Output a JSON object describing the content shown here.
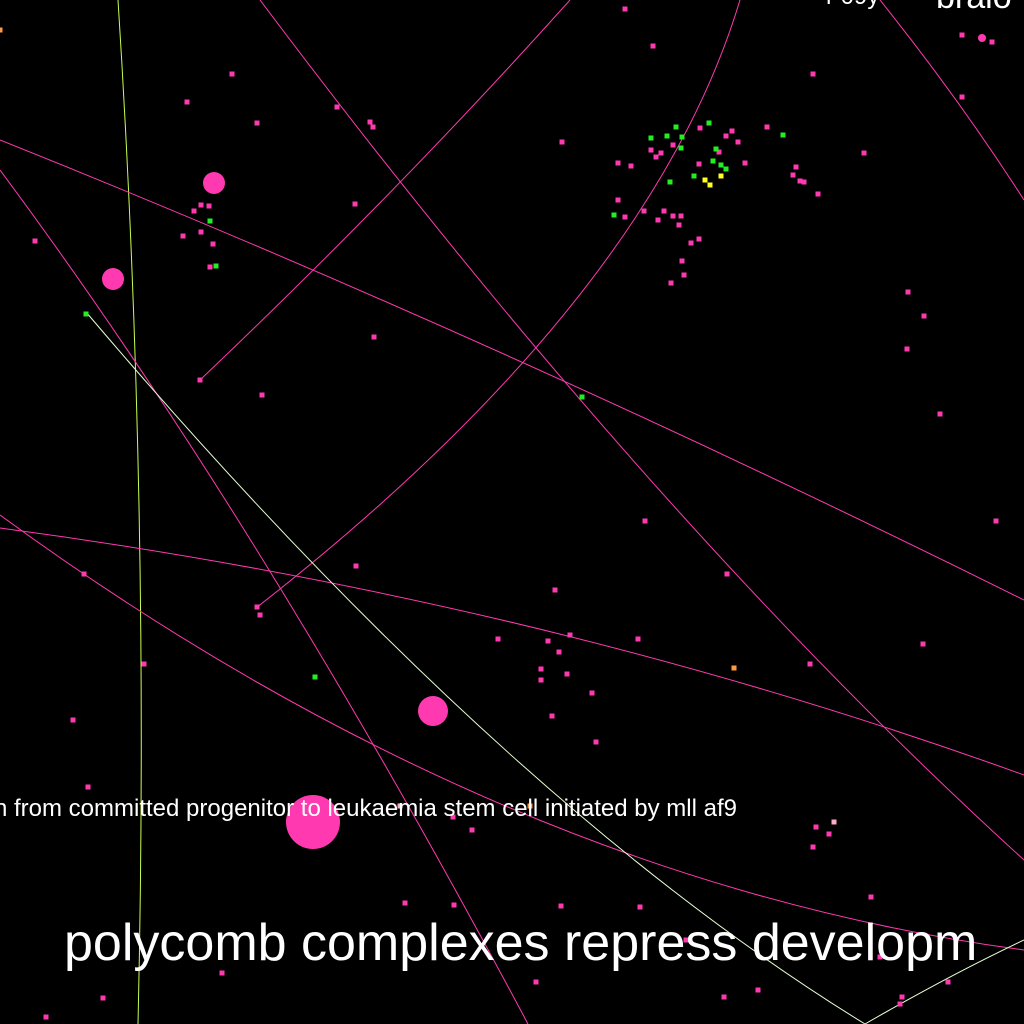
{
  "labels": {
    "bottom_large": "polycomb complexes repress developm",
    "middle": "n from committed progenitor to leukaemia stem cell initiated by mll af9",
    "top_right_small": "r 09y",
    "top_right_large": "braio"
  },
  "colors": {
    "background": "#000000",
    "edge_pink": "#ff3ab0",
    "edge_light": "#e6ffd0",
    "edge_yellow_green": "#c8ff50",
    "node_pink": "#ff3ab0",
    "node_green": "#22ee22",
    "node_yellow": "#ffff22",
    "node_orange": "#ff9944",
    "node_light_pink": "#ffaacc",
    "label_text": "#ffffff"
  }
}
